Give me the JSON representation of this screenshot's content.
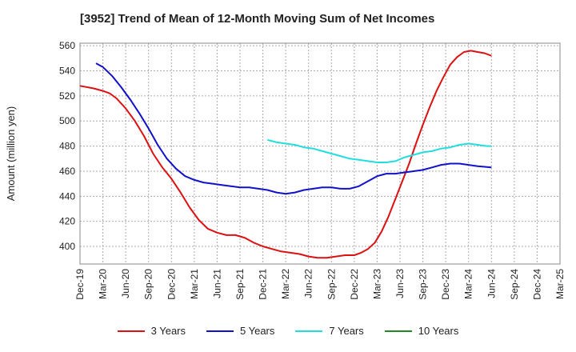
{
  "chart_data": {
    "type": "line",
    "title": "[3952]  Trend of Mean of 12-Month Moving Sum of Net Incomes",
    "ylabel": "Amount (million yen)",
    "xlabel": "",
    "ylim": [
      386,
      562
    ],
    "yticks": [
      400,
      420,
      440,
      460,
      480,
      500,
      520,
      540,
      560
    ],
    "categories": [
      "Dec-19",
      "Mar-20",
      "Jun-20",
      "Sep-20",
      "Dec-20",
      "Mar-21",
      "Jun-21",
      "Sep-21",
      "Dec-21",
      "Mar-22",
      "Jun-22",
      "Sep-22",
      "Dec-22",
      "Mar-23",
      "Jun-23",
      "Sep-23",
      "Dec-23",
      "Mar-24",
      "Jun-24",
      "Sep-24",
      "Dec-24",
      "Mar-25"
    ],
    "grid": true,
    "legend_position": "bottom",
    "series": [
      {
        "name": "3 Years",
        "color": "#dd1111",
        "points": [
          [
            0,
            528
          ],
          [
            0.6,
            526
          ],
          [
            1,
            524
          ],
          [
            1.3,
            522
          ],
          [
            1.6,
            518
          ],
          [
            2,
            510
          ],
          [
            2.4,
            500
          ],
          [
            2.8,
            488
          ],
          [
            3.2,
            474
          ],
          [
            3.6,
            463
          ],
          [
            4,
            454
          ],
          [
            4.4,
            443
          ],
          [
            4.8,
            431
          ],
          [
            5.2,
            421
          ],
          [
            5.6,
            414
          ],
          [
            6,
            411
          ],
          [
            6.4,
            409
          ],
          [
            6.8,
            409
          ],
          [
            7.2,
            407
          ],
          [
            7.6,
            403
          ],
          [
            8,
            400
          ],
          [
            8.4,
            398
          ],
          [
            8.8,
            396
          ],
          [
            9.2,
            395
          ],
          [
            9.6,
            394
          ],
          [
            10,
            392
          ],
          [
            10.4,
            391
          ],
          [
            10.8,
            391
          ],
          [
            11.2,
            392
          ],
          [
            11.6,
            393
          ],
          [
            12,
            393
          ],
          [
            12.3,
            395
          ],
          [
            12.6,
            398
          ],
          [
            12.9,
            403
          ],
          [
            13.2,
            412
          ],
          [
            13.5,
            424
          ],
          [
            13.8,
            438
          ],
          [
            14.1,
            452
          ],
          [
            14.4,
            466
          ],
          [
            14.7,
            482
          ],
          [
            15,
            497
          ],
          [
            15.3,
            511
          ],
          [
            15.6,
            524
          ],
          [
            15.9,
            535
          ],
          [
            16.2,
            545
          ],
          [
            16.5,
            551
          ],
          [
            16.8,
            555
          ],
          [
            17.1,
            556
          ],
          [
            17.4,
            555
          ],
          [
            17.7,
            554
          ],
          [
            18,
            552
          ]
        ]
      },
      {
        "name": "5 Years",
        "color": "#1111cc",
        "points": [
          [
            0.7,
            546
          ],
          [
            1,
            543
          ],
          [
            1.4,
            536
          ],
          [
            1.8,
            527
          ],
          [
            2.2,
            517
          ],
          [
            2.6,
            506
          ],
          [
            3,
            494
          ],
          [
            3.4,
            481
          ],
          [
            3.8,
            470
          ],
          [
            4.2,
            462
          ],
          [
            4.6,
            456
          ],
          [
            5,
            453
          ],
          [
            5.4,
            451
          ],
          [
            5.8,
            450
          ],
          [
            6.2,
            449
          ],
          [
            6.6,
            448
          ],
          [
            7,
            447
          ],
          [
            7.4,
            447
          ],
          [
            7.8,
            446
          ],
          [
            8.2,
            445
          ],
          [
            8.6,
            443
          ],
          [
            9,
            442
          ],
          [
            9.4,
            443
          ],
          [
            9.8,
            445
          ],
          [
            10.2,
            446
          ],
          [
            10.6,
            447
          ],
          [
            11,
            447
          ],
          [
            11.4,
            446
          ],
          [
            11.8,
            446
          ],
          [
            12.2,
            448
          ],
          [
            12.6,
            452
          ],
          [
            13,
            456
          ],
          [
            13.4,
            458
          ],
          [
            13.8,
            458
          ],
          [
            14.2,
            459
          ],
          [
            14.6,
            460
          ],
          [
            15,
            461
          ],
          [
            15.4,
            463
          ],
          [
            15.8,
            465
          ],
          [
            16.2,
            466
          ],
          [
            16.6,
            466
          ],
          [
            17,
            465
          ],
          [
            17.4,
            464
          ],
          [
            18,
            463
          ]
        ]
      },
      {
        "name": "7 Years",
        "color": "#22dddd",
        "points": [
          [
            8.2,
            485
          ],
          [
            8.6,
            483
          ],
          [
            9,
            482
          ],
          [
            9.4,
            481
          ],
          [
            9.8,
            479
          ],
          [
            10.2,
            478
          ],
          [
            10.6,
            476
          ],
          [
            11,
            474
          ],
          [
            11.4,
            472
          ],
          [
            11.8,
            470
          ],
          [
            12.2,
            469
          ],
          [
            12.6,
            468
          ],
          [
            13,
            467
          ],
          [
            13.4,
            467
          ],
          [
            13.8,
            468
          ],
          [
            14.2,
            471
          ],
          [
            14.6,
            473
          ],
          [
            15,
            475
          ],
          [
            15.4,
            476
          ],
          [
            15.8,
            478
          ],
          [
            16.2,
            479
          ],
          [
            16.6,
            481
          ],
          [
            17,
            482
          ],
          [
            17.4,
            481
          ],
          [
            17.8,
            480
          ],
          [
            18,
            480
          ]
        ]
      },
      {
        "name": "10 Years",
        "color": "#228822",
        "points": []
      }
    ]
  }
}
